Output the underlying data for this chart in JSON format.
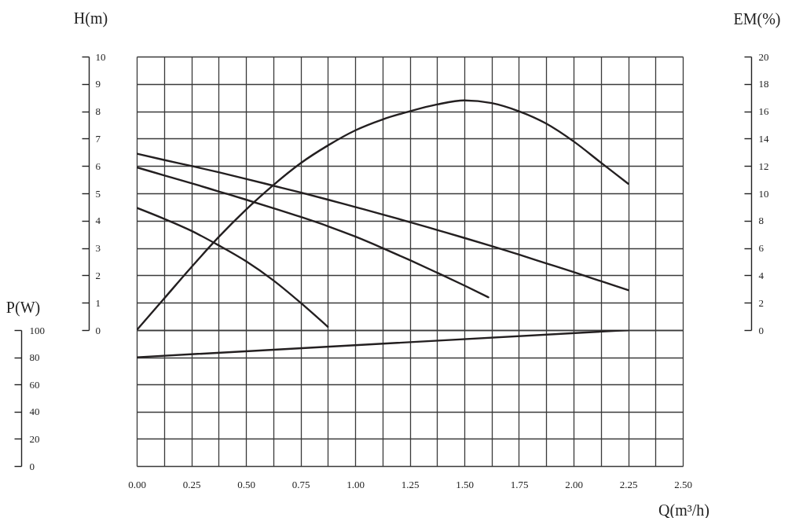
{
  "chart_data": [
    {
      "type": "line",
      "ylabel": "H(m)",
      "y2label": "EM(%)",
      "xlim": [
        0,
        2.5
      ],
      "xticks": [
        0,
        0.125,
        0.25,
        0.375,
        0.5,
        0.625,
        0.75,
        0.875,
        1,
        1.125,
        1.25,
        1.375,
        1.5,
        1.625,
        1.75,
        1.875,
        2,
        2.125,
        2.25,
        2.375,
        2.5
      ],
      "ylim": [
        0,
        10
      ],
      "yticks": [
        0,
        1,
        2,
        3,
        4,
        5,
        6,
        7,
        8,
        9,
        10
      ],
      "y2lim": [
        0,
        20
      ],
      "y2ticks": [
        0,
        2,
        4,
        6,
        8,
        10,
        12,
        14,
        16,
        18,
        20
      ],
      "tick_labels": "y",
      "grid": true,
      "series": [
        {
          "color": "#231f20",
          "x": [
            0,
            0.125,
            0.25,
            0.375,
            0.5,
            0.625,
            0.75,
            0.875
          ],
          "values": [
            4.47,
            4.07,
            3.63,
            3.1,
            2.52,
            1.82,
            1.0,
            0.12
          ]
        },
        {
          "color": "#231f20",
          "x": [
            0,
            0.125,
            0.25,
            0.375,
            0.5,
            0.625,
            0.75,
            0.875,
            1,
            1.125,
            1.25,
            1.375,
            1.5,
            1.61
          ],
          "values": [
            5.95,
            5.66,
            5.37,
            5.07,
            4.77,
            4.46,
            4.14,
            3.8,
            3.42,
            3.0,
            2.56,
            2.1,
            1.63,
            1.2
          ]
        },
        {
          "color": "#231f20",
          "x": [
            0,
            0.125,
            0.25,
            0.375,
            0.5,
            0.625,
            0.75,
            0.875,
            1,
            1.125,
            1.25,
            1.375,
            1.5,
            1.625,
            1.75,
            1.875,
            2,
            2.125,
            2.25
          ],
          "values": [
            6.45,
            6.22,
            6.0,
            5.77,
            5.53,
            5.28,
            5.03,
            4.77,
            4.5,
            4.23,
            3.95,
            3.66,
            3.37,
            3.07,
            2.76,
            2.44,
            2.12,
            1.79,
            1.46
          ]
        },
        {
          "color": "#231f20",
          "axis": "y2",
          "x": [
            0,
            0.125,
            0.25,
            0.375,
            0.5,
            0.625,
            0.75,
            0.875,
            1,
            1.125,
            1.25,
            1.375,
            1.5,
            1.625,
            1.75,
            1.875,
            2,
            2.125,
            2.25
          ],
          "values": [
            0,
            2.3,
            4.6,
            6.8,
            8.8,
            10.6,
            12.2,
            13.5,
            14.6,
            15.4,
            16.0,
            16.5,
            16.8,
            16.6,
            16.0,
            15.1,
            13.8,
            12.25,
            10.7
          ]
        }
      ]
    },
    {
      "type": "line",
      "xlabel": "Q(m³/h)",
      "ylabel": "P(W)",
      "xlim": [
        0,
        2.5
      ],
      "xticks": [
        {
          "value": 0,
          "label": "0.00"
        },
        {
          "value": 0.125,
          "label": null
        },
        {
          "value": 0.25,
          "label": "0.25"
        },
        {
          "value": 0.375,
          "label": null
        },
        {
          "value": 0.5,
          "label": "0.50"
        },
        {
          "value": 0.625,
          "label": null
        },
        {
          "value": 0.75,
          "label": "0.75"
        },
        {
          "value": 0.875,
          "label": null
        },
        {
          "value": 1,
          "label": "1.00"
        },
        {
          "value": 1.125,
          "label": null
        },
        {
          "value": 1.25,
          "label": "1.25"
        },
        {
          "value": 1.375,
          "label": null
        },
        {
          "value": 1.5,
          "label": "1.50"
        },
        {
          "value": 1.625,
          "label": null
        },
        {
          "value": 1.75,
          "label": "1.75"
        },
        {
          "value": 1.875,
          "label": null
        },
        {
          "value": 2,
          "label": "2.00"
        },
        {
          "value": 2.125,
          "label": null
        },
        {
          "value": 2.25,
          "label": "2.25"
        },
        {
          "value": 2.375,
          "label": null
        },
        {
          "value": 2.5,
          "label": "2.50"
        }
      ],
      "ylim": [
        0,
        100
      ],
      "yticks": [
        0,
        20,
        40,
        60,
        80,
        100
      ],
      "grid": true,
      "series": [
        {
          "color": "#231f20",
          "x": [
            0,
            2.25
          ],
          "values": [
            80,
            100
          ]
        }
      ]
    }
  ]
}
